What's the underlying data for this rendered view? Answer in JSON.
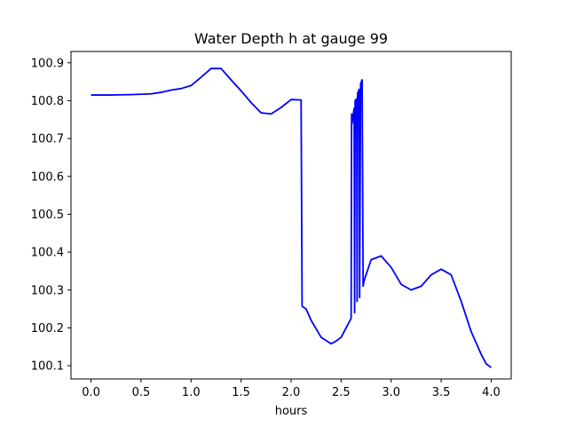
{
  "chart_data": {
    "type": "line",
    "title": "Water Depth h at gauge 99",
    "xlabel": "hours",
    "ylabel": "",
    "xlim": [
      -0.2,
      4.2
    ],
    "ylim": [
      100.065,
      100.93
    ],
    "xticks": [
      0.0,
      0.5,
      1.0,
      1.5,
      2.0,
      2.5,
      3.0,
      3.5,
      4.0
    ],
    "xtick_labels": [
      "0.0",
      "0.5",
      "1.0",
      "1.5",
      "2.0",
      "2.5",
      "3.0",
      "3.5",
      "4.0"
    ],
    "yticks": [
      100.1,
      100.2,
      100.3,
      100.4,
      100.5,
      100.6,
      100.7,
      100.8,
      100.9
    ],
    "ytick_labels": [
      "100.1",
      "100.2",
      "100.3",
      "100.4",
      "100.5",
      "100.6",
      "100.7",
      "100.8",
      "100.9"
    ],
    "grid": false,
    "series": [
      {
        "color": "#0000ff",
        "x": [
          0.0,
          0.2,
          0.4,
          0.6,
          0.7,
          0.8,
          0.9,
          1.0,
          1.1,
          1.2,
          1.3,
          1.4,
          1.5,
          1.6,
          1.7,
          1.8,
          1.9,
          2.0,
          2.1,
          2.11,
          2.15,
          2.2,
          2.3,
          2.4,
          2.45,
          2.5,
          2.55,
          2.6,
          2.605,
          2.61,
          2.63,
          2.635,
          2.64,
          2.655,
          2.66,
          2.665,
          2.68,
          2.685,
          2.695,
          2.71,
          2.72,
          2.73,
          2.8,
          2.9,
          3.0,
          3.1,
          3.2,
          3.3,
          3.4,
          3.5,
          3.6,
          3.7,
          3.8,
          3.9,
          3.95,
          4.0
        ],
        "y": [
          100.815,
          100.815,
          100.816,
          100.818,
          100.822,
          100.828,
          100.832,
          100.84,
          100.862,
          100.885,
          100.885,
          100.855,
          100.826,
          100.795,
          100.768,
          100.765,
          100.782,
          100.803,
          100.802,
          100.257,
          100.25,
          100.22,
          100.175,
          100.158,
          100.165,
          100.175,
          100.2,
          100.225,
          100.765,
          100.74,
          100.78,
          100.24,
          100.8,
          100.805,
          100.27,
          100.82,
          100.83,
          100.28,
          100.845,
          100.855,
          100.31,
          100.325,
          100.38,
          100.39,
          100.36,
          100.315,
          100.3,
          100.31,
          100.34,
          100.355,
          100.34,
          100.27,
          100.19,
          100.13,
          100.105,
          100.095
        ]
      }
    ]
  }
}
